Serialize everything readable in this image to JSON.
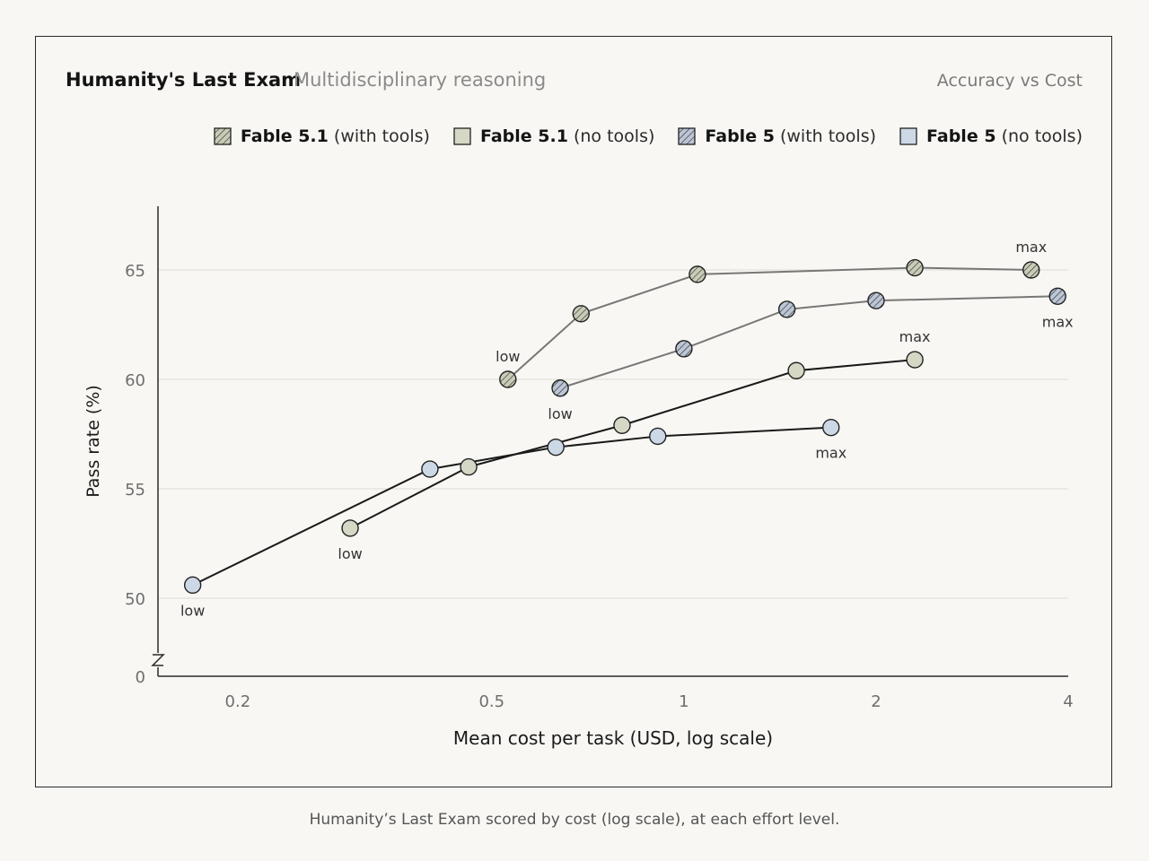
{
  "header": {
    "title": "Humanity's Last Exam",
    "subtitle": "Multidisciplinary reasoning",
    "corner_label": "Accuracy vs Cost"
  },
  "legend": [
    {
      "bold": "Fable 5.1",
      "rest": " (with tools)"
    },
    {
      "bold": "Fable 5.1",
      "rest": " (no tools)"
    },
    {
      "bold": "Fable 5",
      "rest": " (with tools)"
    },
    {
      "bold": "Fable 5",
      "rest": " (no tools)"
    }
  ],
  "caption": "Humanity’s Last Exam scored by cost (log scale), at each effort level.",
  "chart_data": {
    "type": "scatter",
    "xlabel": "Mean cost per task (USD, log scale)",
    "ylabel": "Pass rate (%)",
    "x_scale": "log",
    "xlim": [
      0.15,
      4
    ],
    "x_ticks": [
      0.2,
      0.5,
      1,
      2,
      4
    ],
    "x_tick_labels": [
      "0.2",
      "0.5",
      "1",
      "2",
      "4"
    ],
    "ylim": [
      48,
      68
    ],
    "y_ticks": [
      50,
      55,
      60,
      65
    ],
    "y_tick_labels": [
      "50",
      "55",
      "60",
      "65"
    ],
    "y_axis_break": true,
    "y_zero_label": "0",
    "grid": true,
    "legend_position": "top-right",
    "series": [
      {
        "name": "Fable 5.1 (with tools)",
        "fill": "#c9ccb6",
        "hatch": true,
        "line_color": "#777777",
        "x": [
          0.53,
          0.69,
          1.05,
          2.3,
          3.5
        ],
        "y": [
          60.0,
          63.0,
          64.8,
          65.1,
          65.0
        ],
        "point_labels": [
          "low",
          "",
          "",
          "",
          "max"
        ]
      },
      {
        "name": "Fable 5.1 (no tools)",
        "fill": "#d4d8c4",
        "hatch": false,
        "line_color": "#1a1a1a",
        "x": [
          0.3,
          0.46,
          0.8,
          1.5,
          2.3
        ],
        "y": [
          53.2,
          56.0,
          57.9,
          60.4,
          60.9
        ],
        "point_labels": [
          "low",
          "",
          "",
          "",
          "max"
        ]
      },
      {
        "name": "Fable 5 (with tools)",
        "fill": "#bcc6d6",
        "hatch": true,
        "line_color": "#777777",
        "x": [
          0.64,
          1.0,
          1.45,
          2.0,
          3.85
        ],
        "y": [
          59.6,
          61.4,
          63.2,
          63.6,
          63.8
        ],
        "point_labels": [
          "low",
          "",
          "",
          "",
          "max"
        ]
      },
      {
        "name": "Fable 5 (no tools)",
        "fill": "#ccd8e6",
        "hatch": false,
        "line_color": "#1a1a1a",
        "x": [
          0.17,
          0.4,
          0.63,
          0.91,
          1.7
        ],
        "y": [
          50.6,
          55.9,
          56.9,
          57.4,
          57.8
        ],
        "point_labels": [
          "low",
          "",
          "",
          "",
          "max"
        ]
      }
    ]
  },
  "colors": {
    "background": "#f8f7f3",
    "grid": "#dddbd4",
    "axis": "#2a2a2a",
    "tick_text": "#6e6e6e"
  }
}
